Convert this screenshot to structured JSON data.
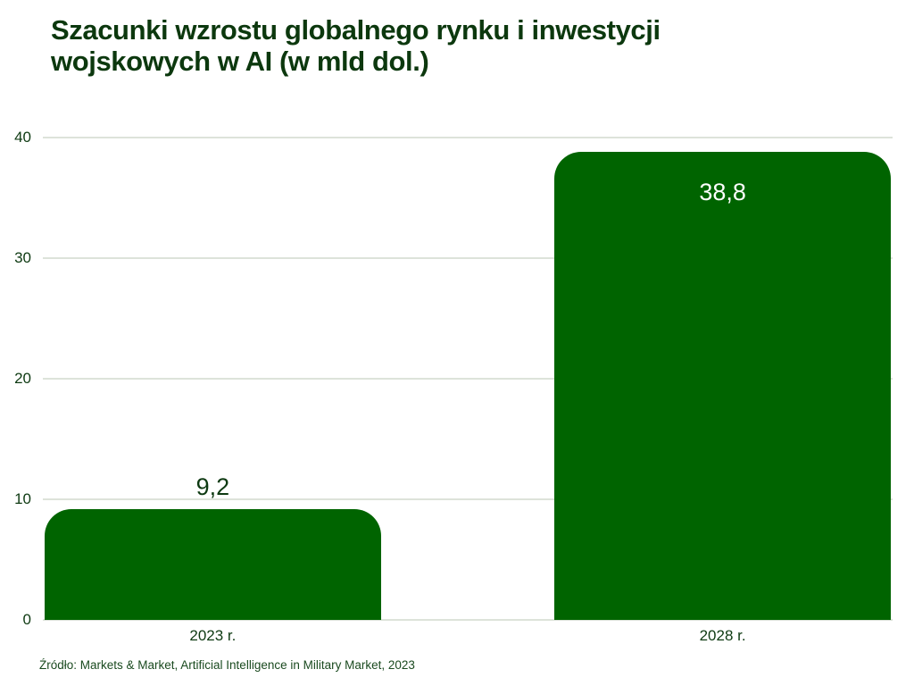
{
  "title": {
    "lines": [
      "Szacunki wzrostu globalnego rynku i inwestycji",
      "wojskowych w AI (w mld dol.)"
    ]
  },
  "source": "Źródło: Markets & Market, Artificial Intelligence in Military Market, 2023",
  "colors": {
    "background": "#ffffff",
    "bar": "#006400",
    "title_text": "#0c380e",
    "axis_text": "#0e3a12",
    "value_label_outside": "#0e3a12",
    "value_label_inside": "#ffffff",
    "source_text": "#1a4a1f",
    "grid": "#dde3da"
  },
  "chart_data": {
    "type": "bar",
    "title": "Szacunki wzrostu globalnego rynku i inwestycji wojskowych w AI (w mld dol.)",
    "categories": [
      "2023 r.",
      "2028 r."
    ],
    "values": [
      9.2,
      38.8
    ],
    "value_labels": [
      "9,2",
      "38,8"
    ],
    "value_label_inside": [
      false,
      true
    ],
    "xlabel": "",
    "ylabel": "",
    "ylim": [
      0,
      40
    ],
    "yticks": [
      0,
      10,
      20,
      30,
      40
    ],
    "grid": "horizontal",
    "legend": "none",
    "bar_corner_style": "rounded-top",
    "source": "Źródło: Markets & Market, Artificial Intelligence in Military Market, 2023"
  }
}
